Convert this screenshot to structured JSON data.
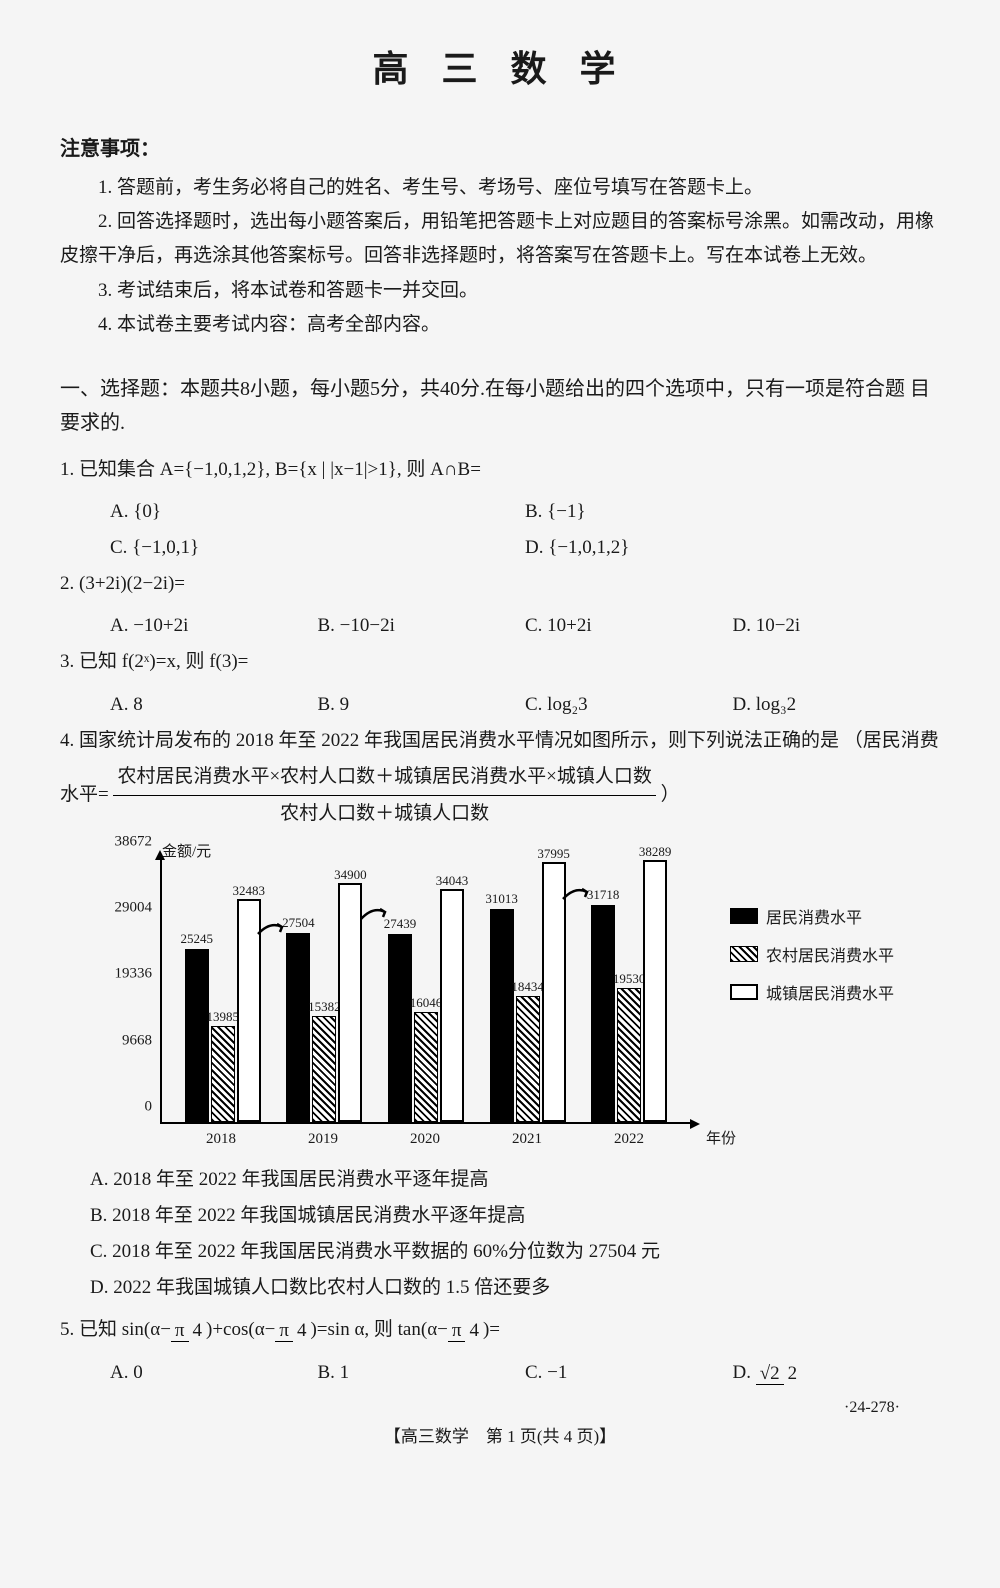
{
  "title": "高 三 数 学",
  "notice_header": "注意事项：",
  "notices": [
    "1. 答题前，考生务必将自己的姓名、考生号、考场号、座位号填写在答题卡上。",
    "2. 回答选择题时，选出每小题答案后，用铅笔把答题卡上对应题目的答案标号涂黑。如需改动，用橡皮擦干净后，再选涂其他答案标号。回答非选择题时，将答案写在答题卡上。写在本试卷上无效。",
    "3. 考试结束后，将本试卷和答题卡一并交回。",
    "4. 本试卷主要考试内容：高考全部内容。"
  ],
  "section1": "一、选择题：本题共8小题，每小题5分，共40分.在每小题给出的四个选项中，只有一项是符合题 目要求的.",
  "q1": {
    "text": "1. 已知集合 A={−1,0,1,2}, B={x | |x−1|>1}, 则 A∩B=",
    "a": "A. {0}",
    "b": "B. {−1}",
    "c": "C. {−1,0,1}",
    "d": "D. {−1,0,1,2}"
  },
  "q2": {
    "text": "2. (3+2i)(2−2i)=",
    "a": "A. −10+2i",
    "b": "B. −10−2i",
    "c": "C. 10+2i",
    "d": "D. 10−2i"
  },
  "q3": {
    "text": "3. 已知 f(2ˣ)=x, 则 f(3)=",
    "a": "A. 8",
    "b": "B. 9",
    "c": "C. log₂3",
    "d": "D. log₃2"
  },
  "q4": {
    "text": "4. 国家统计局发布的 2018 年至 2022 年我国居民消费水平情况如图所示，则下列说法正确的是",
    "formula_prefix": "（居民消费水平=",
    "formula_num": "农村居民消费水平×农村人口数＋城镇居民消费水平×城镇人口数",
    "formula_den": "农村人口数＋城镇人口数",
    "formula_suffix": "）",
    "a": "A. 2018 年至 2022 年我国居民消费水平逐年提高",
    "b": "B. 2018 年至 2022 年我国城镇居民消费水平逐年提高",
    "c": "C. 2018 年至 2022 年我国居民消费水平数据的 60%分位数为 27504 元",
    "d": "D. 2022 年我国城镇人口数比农村人口数的 1.5 倍还要多"
  },
  "q5": {
    "text_prefix": "5. 已知 sin(α−",
    "pi4": "π/4",
    "text_mid1": ")+cos(α−",
    "text_mid2": ")=sin α, 则 tan(α−",
    "text_suffix": ")=",
    "a": "A. 0",
    "b": "B. 1",
    "c": "C. −1",
    "d_prefix": "D. ",
    "d_num": "√2",
    "d_den": "2"
  },
  "chart": {
    "y_title": "金额/元",
    "x_title": "年份",
    "y_ticks": [
      "0",
      "9668",
      "19336",
      "29004",
      "38672"
    ],
    "y_tick_positions": [
      0,
      25,
      50,
      75,
      100
    ],
    "years": [
      "2018",
      "2019",
      "2020",
      "2021",
      "2022"
    ],
    "max_value": 38672,
    "series": [
      {
        "name": "居民消费水平",
        "style": "solid",
        "values": [
          25245,
          27504,
          27439,
          31013,
          31718
        ]
      },
      {
        "name": "农村居民消费水平",
        "style": "hatched",
        "values": [
          13985,
          15382,
          16046,
          18434,
          19530
        ]
      },
      {
        "name": "城镇居民消费水平",
        "style": "hollow",
        "values": [
          32483,
          34900,
          34043,
          37995,
          38289
        ]
      }
    ],
    "legend": [
      "居民消费水平",
      "农村居民消费水平",
      "城镇居民消费水平"
    ]
  },
  "footer": "【高三数学　第 1 页(共 4 页)】",
  "pagenum": "·24-278·"
}
